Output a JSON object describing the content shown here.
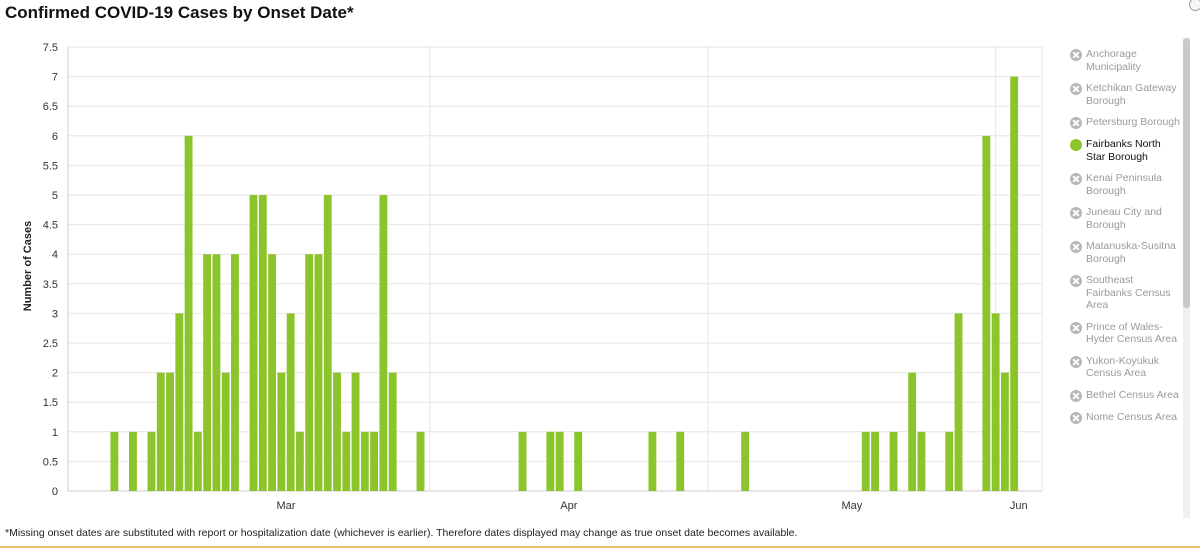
{
  "title": "Confirmed COVID-19 Cases by Onset Date*",
  "footnote": "*Missing onset dates are substituted with report or hospitalization date (whichever is earlier). Therefore dates displayed may change as true onset date becomes available.",
  "colors": {
    "bar": "#8cc42b",
    "grid": "#e6e6e6",
    "axis": "#cccccc",
    "inactive": "#b7b7b7"
  },
  "legend": {
    "items": [
      {
        "label": "Anchorage Municipality",
        "active": false
      },
      {
        "label": "Ketchikan Gateway Borough",
        "active": false
      },
      {
        "label": "Petersburg Borough",
        "active": false
      },
      {
        "label": "Fairbanks North Star Borough",
        "active": true
      },
      {
        "label": "Kenai Peninsula Borough",
        "active": false
      },
      {
        "label": "Juneau City and Borough",
        "active": false
      },
      {
        "label": "Matanuska-Susitna Borough",
        "active": false
      },
      {
        "label": "Southeast Fairbanks Census Area",
        "active": false
      },
      {
        "label": "Prince of Wales-Hyder Census Area",
        "active": false
      },
      {
        "label": "Yukon-Koyukuk Census Area",
        "active": false
      },
      {
        "label": "Bethel Census Area",
        "active": false
      },
      {
        "label": "Nome Census Area",
        "active": false
      }
    ]
  },
  "chart_data": {
    "type": "bar",
    "title": "Confirmed COVID-19 Cases by Onset Date*",
    "xlabel": "",
    "ylabel": "Number of Cases",
    "ylim": [
      0,
      7.5
    ],
    "yticks": [
      0,
      0.5,
      1,
      1.5,
      2,
      2.5,
      3,
      3.5,
      4,
      4.5,
      5,
      5.5,
      6,
      6.5,
      7,
      7.5
    ],
    "x_range": [
      "2020-02-22",
      "2020-06-06"
    ],
    "x_ticks": [
      {
        "label": "Mar",
        "date": "2020-03-01"
      },
      {
        "label": "Apr",
        "date": "2020-04-01"
      },
      {
        "label": "May",
        "date": "2020-05-01"
      },
      {
        "label": "Jun",
        "date": "2020-06-01"
      }
    ],
    "grid": true,
    "legend_position": "right",
    "series": [
      {
        "name": "Fairbanks North Star Borough",
        "points": [
          {
            "date": "2020-02-27",
            "value": 1
          },
          {
            "date": "2020-02-29",
            "value": 1
          },
          {
            "date": "2020-03-02",
            "value": 1
          },
          {
            "date": "2020-03-03",
            "value": 2
          },
          {
            "date": "2020-03-04",
            "value": 2
          },
          {
            "date": "2020-03-05",
            "value": 3
          },
          {
            "date": "2020-03-06",
            "value": 6
          },
          {
            "date": "2020-03-07",
            "value": 1
          },
          {
            "date": "2020-03-08",
            "value": 4
          },
          {
            "date": "2020-03-09",
            "value": 4
          },
          {
            "date": "2020-03-10",
            "value": 2
          },
          {
            "date": "2020-03-11",
            "value": 4
          },
          {
            "date": "2020-03-13",
            "value": 5
          },
          {
            "date": "2020-03-14",
            "value": 5
          },
          {
            "date": "2020-03-15",
            "value": 4
          },
          {
            "date": "2020-03-16",
            "value": 2
          },
          {
            "date": "2020-03-17",
            "value": 3
          },
          {
            "date": "2020-03-18",
            "value": 1
          },
          {
            "date": "2020-03-19",
            "value": 4
          },
          {
            "date": "2020-03-20",
            "value": 4
          },
          {
            "date": "2020-03-21",
            "value": 5
          },
          {
            "date": "2020-03-22",
            "value": 2
          },
          {
            "date": "2020-03-23",
            "value": 1
          },
          {
            "date": "2020-03-24",
            "value": 2
          },
          {
            "date": "2020-03-25",
            "value": 1
          },
          {
            "date": "2020-03-26",
            "value": 1
          },
          {
            "date": "2020-03-27",
            "value": 5
          },
          {
            "date": "2020-03-28",
            "value": 2
          },
          {
            "date": "2020-03-31",
            "value": 1
          },
          {
            "date": "2020-04-11",
            "value": 1
          },
          {
            "date": "2020-04-14",
            "value": 1
          },
          {
            "date": "2020-04-15",
            "value": 1
          },
          {
            "date": "2020-04-17",
            "value": 1
          },
          {
            "date": "2020-04-25",
            "value": 1
          },
          {
            "date": "2020-04-28",
            "value": 1
          },
          {
            "date": "2020-05-05",
            "value": 1
          },
          {
            "date": "2020-05-18",
            "value": 1
          },
          {
            "date": "2020-05-19",
            "value": 1
          },
          {
            "date": "2020-05-21",
            "value": 1
          },
          {
            "date": "2020-05-23",
            "value": 2
          },
          {
            "date": "2020-05-24",
            "value": 1
          },
          {
            "date": "2020-05-27",
            "value": 1
          },
          {
            "date": "2020-05-28",
            "value": 3
          },
          {
            "date": "2020-05-31",
            "value": 6
          },
          {
            "date": "2020-06-01",
            "value": 3
          },
          {
            "date": "2020-06-02",
            "value": 2
          },
          {
            "date": "2020-06-03",
            "value": 7
          }
        ]
      }
    ]
  }
}
